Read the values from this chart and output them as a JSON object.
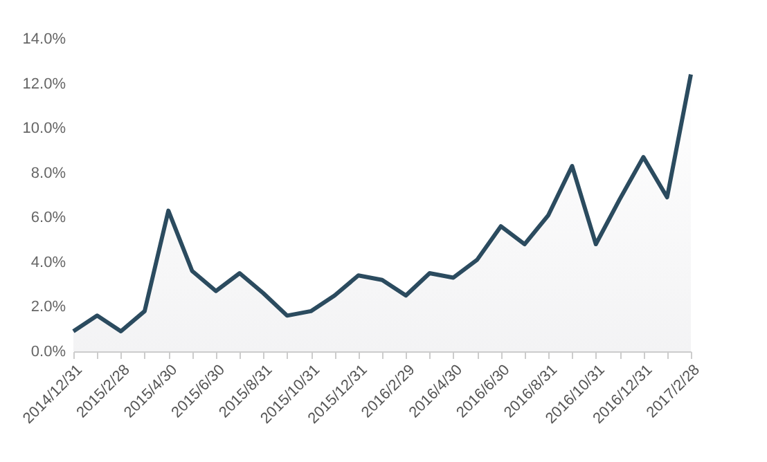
{
  "chart_data": {
    "type": "area",
    "categories": [
      "2014/12/31",
      null,
      "2015/2/28",
      null,
      "2015/4/30",
      null,
      "2015/6/30",
      null,
      "2015/8/31",
      null,
      "2015/10/31",
      null,
      "2015/12/31",
      null,
      "2016/2/29",
      null,
      "2016/4/30",
      null,
      "2016/6/30",
      null,
      "2016/8/31",
      null,
      "2016/10/31",
      null,
      "2016/12/31",
      null,
      "2017/2/28"
    ],
    "series": [
      {
        "color": "#2b4b5f",
        "values": [
          0.9,
          1.6,
          0.9,
          1.8,
          6.3,
          3.6,
          2.7,
          3.5,
          2.6,
          1.6,
          1.8,
          2.5,
          3.4,
          3.2,
          2.5,
          3.5,
          3.3,
          4.1,
          5.6,
          4.8,
          6.1,
          8.3,
          4.8,
          6.8,
          8.7,
          6.9,
          12.4
        ]
      }
    ],
    "ylim": [
      0,
      14
    ],
    "yticks": [
      {
        "value": 0,
        "label": "0.0%"
      },
      {
        "value": 2,
        "label": "2.0%"
      },
      {
        "value": 4,
        "label": "4.0%"
      },
      {
        "value": 6,
        "label": "6.0%"
      },
      {
        "value": 8,
        "label": "8.0%"
      },
      {
        "value": 10,
        "label": "10.0%"
      },
      {
        "value": 12,
        "label": "12.0%"
      },
      {
        "value": 14,
        "label": "14.0%"
      }
    ],
    "grid": false,
    "marker": "none",
    "line_style": "solid"
  }
}
